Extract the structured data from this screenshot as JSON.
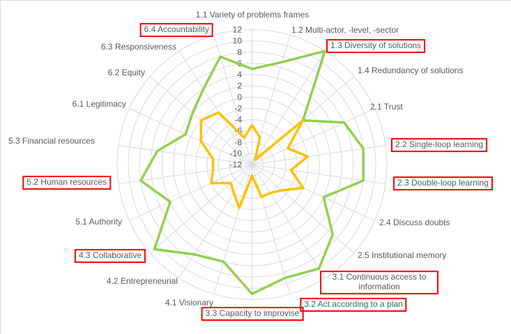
{
  "chart_data": {
    "type": "radar",
    "title": "",
    "legend": "none",
    "axis": {
      "min": -12,
      "max": 12,
      "step": 2,
      "ticks": [
        12,
        10,
        8,
        6,
        4,
        2,
        0,
        -2,
        -4,
        -6,
        -8,
        -10,
        -12
      ]
    },
    "categories": [
      {
        "label": "1.1 Variety of problems frames",
        "boxed": false
      },
      {
        "label": "1.2 Multi-actor, -level, -sector",
        "boxed": false
      },
      {
        "label": "1.3 Diversity of solutions",
        "boxed": true
      },
      {
        "label": "1.4 Redundancy of solutions",
        "boxed": false
      },
      {
        "label": "2.1 Trust",
        "boxed": false
      },
      {
        "label": "2.2 Single-loop learning",
        "boxed": true
      },
      {
        "label": "2.3 Double-loop learning",
        "boxed": true
      },
      {
        "label": "2.4 Discuss doubts",
        "boxed": false
      },
      {
        "label": "2.5 Institutional memory",
        "boxed": false
      },
      {
        "label": "3.1 Continuous access to information",
        "boxed": true
      },
      {
        "label": "3.2 Act according to a plan",
        "boxed": true
      },
      {
        "label": "3.3 Capacity to improvise",
        "boxed": true
      },
      {
        "label": "4.1 Visionary",
        "boxed": false
      },
      {
        "label": "4.2 Entrepreneurial",
        "boxed": false
      },
      {
        "label": "4.3 Collaborative",
        "boxed": true
      },
      {
        "label": "5.1 Authority",
        "boxed": false
      },
      {
        "label": "5.2 Human resources",
        "boxed": true
      },
      {
        "label": "5.3 Financial resources",
        "boxed": false
      },
      {
        "label": "6.1 Legitimacy",
        "boxed": false
      },
      {
        "label": "6.2 Equity",
        "boxed": false
      },
      {
        "label": "6.3 Responsiveness",
        "boxed": false
      },
      {
        "label": "6.4 Accountability",
        "boxed": true
      }
    ],
    "series": [
      {
        "key": "green",
        "color": "#92D050",
        "values": [
          5,
          7,
          12,
          0,
          6,
          8,
          8,
          2,
          7,
          10,
          9,
          11,
          6,
          7,
          11,
          4,
          8,
          5,
          1,
          2,
          4,
          8
        ]
      },
      {
        "key": "orange",
        "color": "#FFC000",
        "values": [
          -5,
          -7,
          -11,
          0,
          -5,
          -2,
          -5,
          -2,
          -5,
          -6,
          -6,
          -10,
          -4,
          -6,
          -7,
          -4,
          -5,
          -5,
          -2,
          0,
          -1,
          -7
        ]
      }
    ],
    "colors": {
      "gridline": "#D9D9DE",
      "tick_label": "#595959",
      "category_label": "#595959",
      "highlight_box": "#FF0000"
    }
  }
}
